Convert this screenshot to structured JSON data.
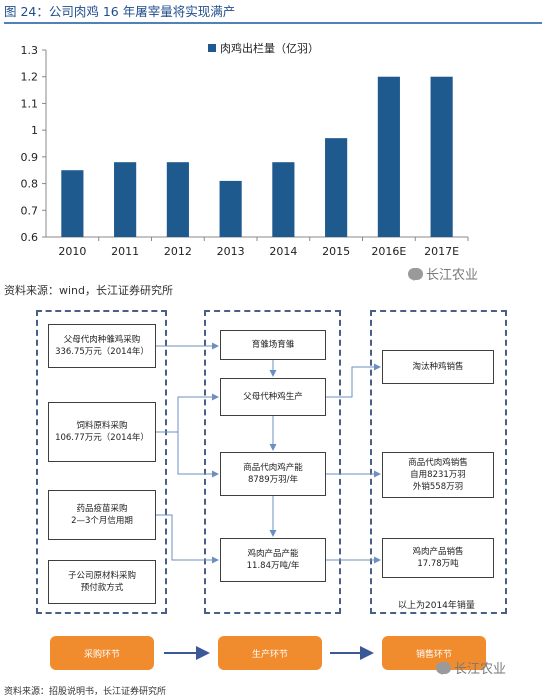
{
  "caption": "图 24：公司肉鸡 16 年屠宰量将实现满产",
  "chart_data": {
    "type": "bar",
    "categories": [
      "2010",
      "2011",
      "2012",
      "2013",
      "2014",
      "2015",
      "2016E",
      "2017E"
    ],
    "series": [
      {
        "name": "肉鸡出栏量（亿羽）",
        "values": [
          0.85,
          0.88,
          0.88,
          0.81,
          0.88,
          0.97,
          1.2,
          1.2
        ]
      }
    ],
    "ylim": [
      0.6,
      1.3
    ],
    "yticks": [
      "0.6",
      "0.7",
      "0.8",
      "0.9",
      "1",
      "1.1",
      "1.2",
      "1.3"
    ],
    "grid": false,
    "legend": "top-center",
    "bar_color": "#1f5a8f"
  },
  "source_top": "资料来源：wind，长江证券研究所",
  "watermark_text": "长江农业",
  "flow": {
    "procurement_boxes": [
      "父母代肉种雏鸡采购\n336.75万元（2014年）",
      "饲料原料采购\n106.77万元（2014年）",
      "药品疫苗采购\n2—3个月信用期",
      "子公司原材料采购\n预付款方式"
    ],
    "production_boxes": [
      "育雏场育雏",
      "父母代种鸡生产",
      "商品代肉鸡产能\n8789万羽/年",
      "鸡肉产品产能\n11.84万吨/年"
    ],
    "sales_boxes": [
      "淘汰种鸡销售",
      "商品代肉鸡销售\n自用8231万羽\n外销558万羽",
      "鸡肉产品销售\n17.78万吨"
    ],
    "sales_note": "以上为2014年销量",
    "stages": [
      "采购环节",
      "生产环节",
      "销售环节"
    ]
  },
  "source_bottom": "资料来源：招股说明书，长江证券研究所"
}
